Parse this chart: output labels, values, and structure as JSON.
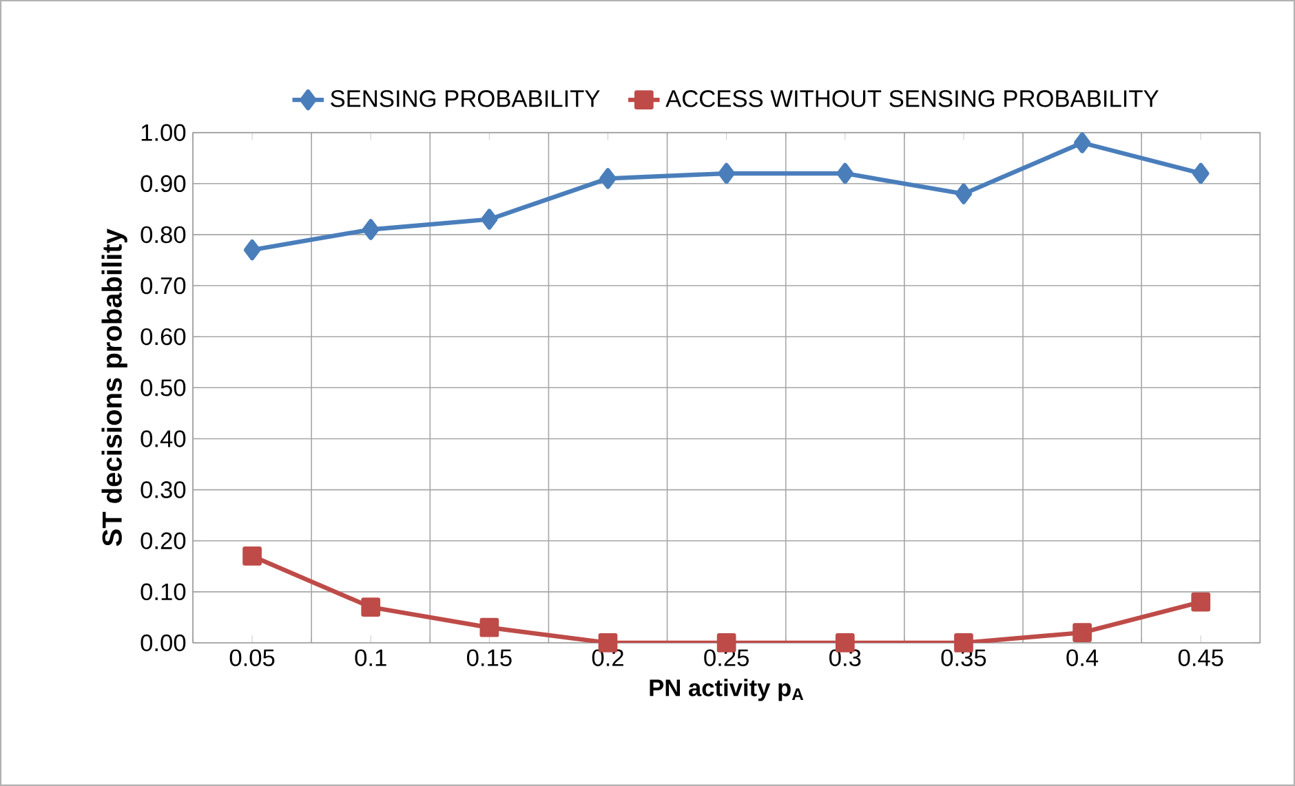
{
  "chart_data": {
    "type": "line",
    "xlabel": "PN activity p$_{A}$",
    "ylabel": "ST decisions probability",
    "categories": [
      "0.05",
      "0.1",
      "0.15",
      "0.2",
      "0.25",
      "0.3",
      "0.35",
      "0.4",
      "0.45"
    ],
    "series": [
      {
        "name": "SENSING PROBABILITY",
        "color": "#4a7ebb",
        "marker": "diamond",
        "values": [
          0.77,
          0.81,
          0.83,
          0.91,
          0.92,
          0.92,
          0.88,
          0.98,
          0.92
        ]
      },
      {
        "name": "ACCESS WITHOUT SENSING PROBABILITY",
        "color": "#be4b48",
        "marker": "square",
        "values": [
          0.17,
          0.07,
          0.03,
          0,
          0,
          0,
          0,
          0.02,
          0.08
        ]
      }
    ],
    "ylim": [
      0,
      1
    ],
    "yticks": [
      {
        "value": 0,
        "label": "0.00"
      },
      {
        "value": 0.1,
        "label": "0.10"
      },
      {
        "value": 0.2,
        "label": "0.20"
      },
      {
        "value": 0.3,
        "label": "0.30"
      },
      {
        "value": 0.4,
        "label": "0.40"
      },
      {
        "value": 0.5,
        "label": "0.50"
      },
      {
        "value": 0.6,
        "label": "0.60"
      },
      {
        "value": 0.7,
        "label": "0.70"
      },
      {
        "value": 0.8,
        "label": "0.80"
      },
      {
        "value": 0.9,
        "label": "0.90"
      },
      {
        "value": 1,
        "label": "1.00"
      }
    ],
    "grid": true,
    "legend": "top",
    "line_style": "solid"
  }
}
